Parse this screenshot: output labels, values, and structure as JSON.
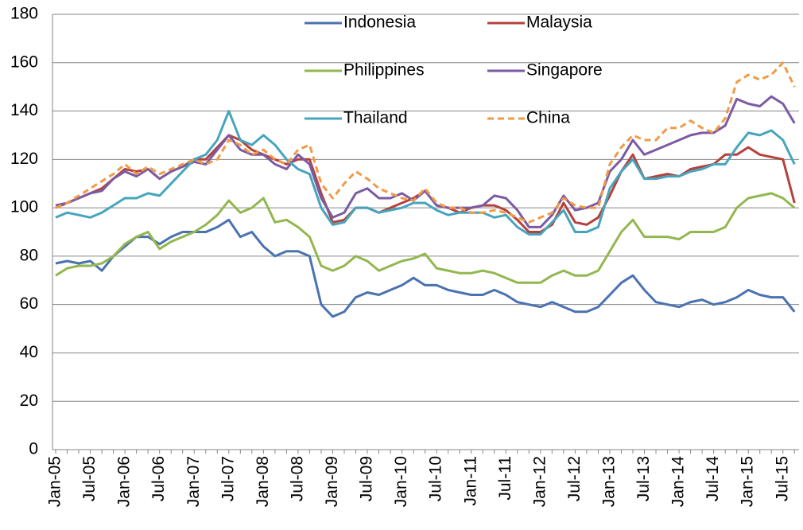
{
  "chart_data": {
    "type": "line",
    "categories": [
      "Jan-05",
      null,
      null,
      "Jul-05",
      null,
      null,
      "Jan-06",
      null,
      null,
      "Jul-06",
      null,
      null,
      "Jan-07",
      null,
      null,
      "Jul-07",
      null,
      null,
      "Jan-08",
      null,
      null,
      "Jul-08",
      null,
      null,
      "Jan-09",
      null,
      null,
      "Jul-09",
      null,
      null,
      "Jan-10",
      null,
      null,
      "Jul-10",
      null,
      null,
      "Jan-11",
      null,
      null,
      "Jul-11",
      null,
      null,
      "Jan-12",
      null,
      null,
      "Jul-12",
      null,
      null,
      "Jan-13",
      null,
      null,
      "Jul-13",
      null,
      null,
      "Jan-14",
      null,
      null,
      "Jul-14",
      null,
      null,
      "Jan-15",
      null,
      null,
      "Jul-15",
      null
    ],
    "series": [
      {
        "name": "Indonesia",
        "color": "#4a72b0",
        "dashed": false,
        "values": [
          77,
          78,
          77,
          78,
          74,
          80,
          84,
          88,
          88,
          85,
          88,
          90,
          90,
          90,
          92,
          95,
          88,
          90,
          84,
          80,
          82,
          82,
          80,
          60,
          55,
          57,
          63,
          65,
          64,
          66,
          68,
          71,
          68,
          68,
          66,
          65,
          64,
          64,
          66,
          64,
          61,
          60,
          59,
          61,
          59,
          57,
          57,
          59,
          64,
          69,
          72,
          66,
          61,
          60,
          59,
          61,
          62,
          60,
          61,
          63,
          66,
          64,
          63,
          63,
          57
        ]
      },
      {
        "name": "Malaysia",
        "color": "#b5413c",
        "dashed": false,
        "values": [
          100,
          102,
          104,
          106,
          108,
          112,
          116,
          115,
          116,
          112,
          115,
          117,
          120,
          120,
          125,
          130,
          128,
          124,
          122,
          120,
          118,
          120,
          120,
          106,
          94,
          95,
          100,
          100,
          98,
          100,
          102,
          104,
          107,
          101,
          100,
          98,
          100,
          101,
          101,
          99,
          95,
          90,
          90,
          93,
          102,
          94,
          93,
          96,
          105,
          115,
          122,
          112,
          113,
          114,
          113,
          116,
          117,
          118,
          122,
          122,
          125,
          122,
          121,
          120,
          102
        ]
      },
      {
        "name": "Philippines",
        "color": "#93b74f",
        "dashed": false,
        "values": [
          72,
          75,
          76,
          76,
          77,
          80,
          85,
          88,
          90,
          83,
          86,
          88,
          90,
          93,
          97,
          103,
          98,
          100,
          104,
          94,
          95,
          92,
          88,
          76,
          74,
          76,
          80,
          78,
          74,
          76,
          78,
          79,
          81,
          75,
          74,
          73,
          73,
          74,
          73,
          71,
          69,
          69,
          69,
          72,
          74,
          72,
          72,
          74,
          82,
          90,
          95,
          88,
          88,
          88,
          87,
          90,
          90,
          90,
          92,
          100,
          104,
          105,
          106,
          104,
          100
        ]
      },
      {
        "name": "Singapore",
        "color": "#7b5ba3",
        "dashed": false,
        "values": [
          101,
          102,
          104,
          106,
          107,
          112,
          115,
          113,
          116,
          112,
          115,
          117,
          119,
          118,
          124,
          130,
          124,
          122,
          122,
          118,
          116,
          122,
          118,
          104,
          96,
          98,
          106,
          108,
          104,
          104,
          106,
          103,
          107,
          101,
          100,
          100,
          100,
          101,
          105,
          104,
          99,
          92,
          92,
          97,
          105,
          99,
          100,
          102,
          115,
          120,
          128,
          122,
          124,
          126,
          128,
          130,
          131,
          131,
          134,
          145,
          143,
          142,
          146,
          143,
          135
        ]
      },
      {
        "name": "Thailand",
        "color": "#46a5bd",
        "dashed": false,
        "values": [
          96,
          98,
          97,
          96,
          98,
          101,
          104,
          104,
          106,
          105,
          110,
          115,
          120,
          122,
          128,
          140,
          128,
          126,
          130,
          126,
          120,
          116,
          114,
          100,
          93,
          94,
          100,
          100,
          98,
          99,
          100,
          102,
          102,
          99,
          97,
          98,
          98,
          98,
          96,
          97,
          92,
          89,
          89,
          94,
          99,
          90,
          90,
          92,
          108,
          115,
          120,
          112,
          112,
          113,
          113,
          115,
          116,
          118,
          118,
          125,
          131,
          130,
          132,
          128,
          118
        ]
      },
      {
        "name": "China",
        "color": "#f09a48",
        "dashed": true,
        "values": [
          100,
          102,
          105,
          108,
          111,
          114,
          118,
          114,
          117,
          114,
          116,
          118,
          120,
          118,
          120,
          128,
          126,
          122,
          124,
          120,
          118,
          124,
          126,
          110,
          104,
          110,
          115,
          112,
          108,
          106,
          104,
          103,
          108,
          102,
          100,
          100,
          98,
          98,
          99,
          98,
          96,
          94,
          96,
          98,
          104,
          101,
          100,
          100,
          118,
          125,
          130,
          128,
          128,
          133,
          133,
          136,
          133,
          131,
          137,
          152,
          155,
          153,
          155,
          160,
          150
        ]
      }
    ],
    "ylim": [
      0,
      180
    ],
    "yticks": [
      0,
      20,
      40,
      60,
      80,
      100,
      120,
      140,
      160,
      180
    ],
    "grid": true,
    "legend": "top"
  }
}
